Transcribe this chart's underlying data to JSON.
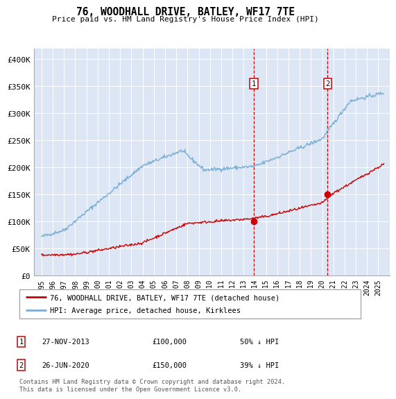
{
  "title": "76, WOODHALL DRIVE, BATLEY, WF17 7TE",
  "subtitle": "Price paid vs. HM Land Registry's House Price Index (HPI)",
  "ylim": [
    0,
    420000
  ],
  "yticks": [
    0,
    50000,
    100000,
    150000,
    200000,
    250000,
    300000,
    350000,
    400000
  ],
  "ytick_labels": [
    "£0",
    "£50K",
    "£100K",
    "£150K",
    "£200K",
    "£250K",
    "£300K",
    "£350K",
    "£400K"
  ],
  "background_color": "#ffffff",
  "plot_bg_color": "#dce6f4",
  "grid_color": "#ffffff",
  "legend_label_red": "76, WOODHALL DRIVE, BATLEY, WF17 7TE (detached house)",
  "legend_label_blue": "HPI: Average price, detached house, Kirklees",
  "sale1_label": "1",
  "sale1_date": "27-NOV-2013",
  "sale1_price": "£100,000",
  "sale1_pct": "50% ↓ HPI",
  "sale2_label": "2",
  "sale2_date": "26-JUN-2020",
  "sale2_price": "£150,000",
  "sale2_pct": "39% ↓ HPI",
  "footer": "Contains HM Land Registry data © Crown copyright and database right 2024.\nThis data is licensed under the Open Government Licence v3.0.",
  "red_color": "#cc0000",
  "blue_color": "#7aadd4",
  "vline_color": "#cc0000",
  "sale_dot_color": "#cc0000",
  "sale1_x": 2013.9,
  "sale1_y": 100000,
  "sale2_x": 2020.48,
  "sale2_y": 150000,
  "xlim_left": 1994.3,
  "xlim_right": 2026.0
}
